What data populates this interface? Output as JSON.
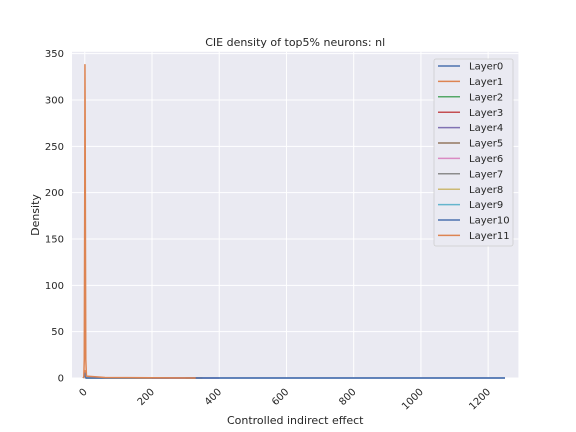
{
  "chart_data": {
    "type": "line",
    "title": "CIE density of top5% neurons: nl",
    "xlabel": "Controlled indirect effect",
    "ylabel": "Density",
    "xlim": [
      -38,
      1290
    ],
    "ylim": [
      0,
      352
    ],
    "xticks": [
      0,
      200,
      400,
      600,
      800,
      1000,
      1200
    ],
    "yticks": [
      0,
      50,
      100,
      150,
      200,
      250,
      300,
      350
    ],
    "grid": true,
    "legend_position": "top-right",
    "series": [
      {
        "name": "Layer0",
        "color": "#4c72b0",
        "x": [
          -4,
          -1,
          0,
          1,
          4,
          1250
        ],
        "y": [
          0,
          2,
          6,
          2,
          0,
          0
        ]
      },
      {
        "name": "Layer1",
        "color": "#dd8452",
        "x": [
          -4,
          -1,
          0,
          1,
          4,
          180
        ],
        "y": [
          0,
          3,
          8,
          3,
          0,
          0
        ]
      },
      {
        "name": "Layer2",
        "color": "#55a868",
        "x": [
          -4,
          -1,
          0,
          1,
          4,
          300
        ],
        "y": [
          0,
          2,
          5,
          2,
          0,
          0
        ]
      },
      {
        "name": "Layer3",
        "color": "#c44e52",
        "x": [
          -4,
          -1,
          0,
          1,
          4,
          330
        ],
        "y": [
          0,
          2,
          5,
          2,
          0,
          0
        ]
      },
      {
        "name": "Layer4",
        "color": "#8172b3",
        "x": [
          -4,
          -1,
          0,
          1,
          4,
          400
        ],
        "y": [
          0,
          2,
          4,
          2,
          0,
          0
        ]
      },
      {
        "name": "Layer5",
        "color": "#937860",
        "x": [
          -4,
          -1,
          0,
          1,
          4,
          350
        ],
        "y": [
          0,
          2,
          4,
          2,
          0,
          0
        ]
      },
      {
        "name": "Layer6",
        "color": "#da8bc3",
        "x": [
          -4,
          -1,
          0,
          1,
          4,
          300
        ],
        "y": [
          0,
          2,
          4,
          2,
          0,
          0
        ]
      },
      {
        "name": "Layer7",
        "color": "#8c8c8c",
        "x": [
          -4,
          -1,
          0,
          1,
          4,
          250
        ],
        "y": [
          0,
          2,
          4,
          2,
          0,
          0
        ]
      },
      {
        "name": "Layer8",
        "color": "#ccb974",
        "x": [
          -4,
          -1,
          0,
          1,
          4,
          200
        ],
        "y": [
          0,
          2,
          4,
          2,
          0,
          0
        ]
      },
      {
        "name": "Layer9",
        "color": "#64b5cd",
        "x": [
          -4,
          -1,
          0,
          1,
          4,
          150
        ],
        "y": [
          0,
          2,
          4,
          2,
          0,
          0
        ]
      },
      {
        "name": "Layer10",
        "color": "#4c72b0",
        "x": [
          -4,
          -1,
          0,
          1,
          4,
          1250
        ],
        "y": [
          0,
          2,
          5,
          2,
          0,
          0
        ]
      },
      {
        "name": "Layer11",
        "color": "#dd8452",
        "x": [
          -3,
          -1.5,
          0,
          0.5,
          1,
          2,
          3,
          5,
          60,
          330
        ],
        "y": [
          0,
          20,
          210,
          338,
          300,
          150,
          20,
          2,
          0.5,
          0
        ]
      }
    ]
  }
}
